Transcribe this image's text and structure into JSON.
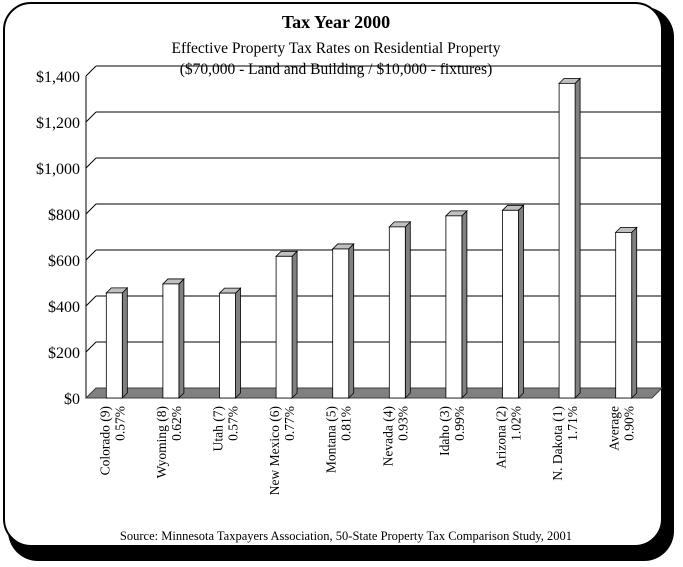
{
  "chart_data": {
    "type": "bar",
    "title": "Tax Year 2000",
    "subtitle": [
      "Effective Property Tax Rates on Residential Property",
      "($70,000 - Land and Building / $10,000 - fixtures)"
    ],
    "categories": [
      [
        "Colorado (9)",
        "0.57%"
      ],
      [
        "Wyoming (8)",
        "0.62%"
      ],
      [
        "Utah (7)",
        "0.57%"
      ],
      [
        "New Mexico (6)",
        "0.77%"
      ],
      [
        "Montana (5)",
        "0.81%"
      ],
      [
        "Nevada (4)",
        "0.93%"
      ],
      [
        "Idaho (3)",
        "0.99%"
      ],
      [
        "Arizona (2)",
        "1.02%"
      ],
      [
        "N. Dakota (1)",
        "1.71%"
      ],
      [
        "Average",
        "0.90%"
      ]
    ],
    "values": [
      457,
      496,
      456,
      616,
      648,
      744,
      792,
      816,
      1368,
      720
    ],
    "ylim": [
      0,
      1400
    ],
    "yticks": [
      0,
      200,
      400,
      600,
      800,
      1000,
      1200,
      1400
    ],
    "ytick_labels": [
      "$0",
      "$200",
      "$400",
      "$600",
      "$800",
      "$1,000",
      "$1,200",
      "$1,400"
    ],
    "grid": true,
    "source": "Source: Minnesota Taxpayers Association, 50-State Property Tax Comparison Study, 2001",
    "colors": {
      "bar_face": "#ffffff",
      "bar_side": "#808080",
      "bar_top": "#c0c0c0",
      "floor": "#808080",
      "grid": "#000000"
    }
  }
}
